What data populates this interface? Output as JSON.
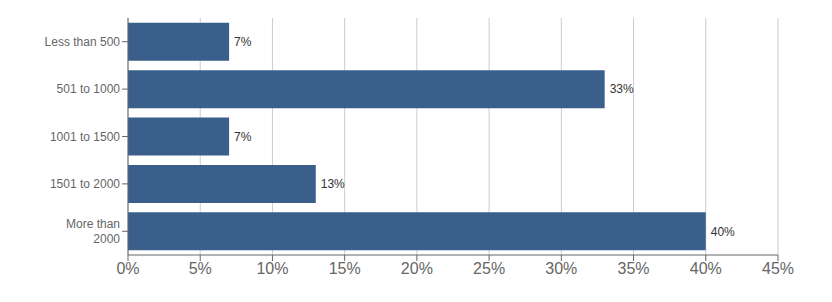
{
  "chart_data": {
    "type": "bar",
    "orientation": "horizontal",
    "categories": [
      "Less than 500",
      "501 to 1000",
      "1001 to 1500",
      "1501 to 2000",
      "More than\n2000"
    ],
    "values": [
      7,
      33,
      7,
      13,
      40
    ],
    "value_labels": [
      "7%",
      "33%",
      "7%",
      "13%",
      "40%"
    ],
    "data_labels": true,
    "color": "#3a5f8a",
    "xlim": [
      0,
      45
    ],
    "xticks": [
      {
        "value": 0,
        "label": "0%"
      },
      {
        "value": 5,
        "label": "5%"
      },
      {
        "value": 10,
        "label": "10%"
      },
      {
        "value": 15,
        "label": "15%"
      },
      {
        "value": 20,
        "label": "20%"
      },
      {
        "value": 25,
        "label": "25%"
      },
      {
        "value": 30,
        "label": "30%"
      },
      {
        "value": 35,
        "label": "35%"
      },
      {
        "value": 40,
        "label": "40%"
      },
      {
        "value": 45,
        "label": "45%"
      }
    ],
    "grid": true
  }
}
